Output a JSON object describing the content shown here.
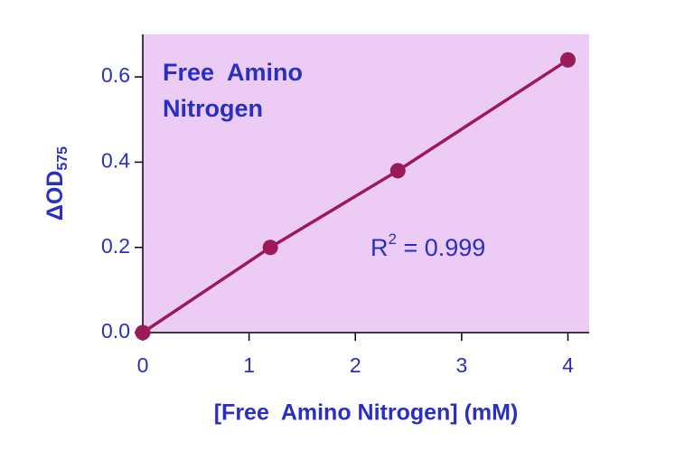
{
  "chart_data": {
    "type": "scatter",
    "title": [
      "Free  Amino",
      "Nitrogen"
    ],
    "x_label": "[Free  Amino Nitrogen] (mM)",
    "y_label": {
      "main": "ΔOD",
      "sub": "575"
    },
    "annotation": {
      "main": "R",
      "sup": "2",
      "rest": " = 0.999"
    },
    "x": [
      0,
      1.2,
      2.4,
      4
    ],
    "series": [
      {
        "color": "#9b1a5a",
        "values": [
          0,
          0.2,
          0.38,
          0.64
        ]
      }
    ],
    "xlim": [
      0,
      4.2
    ],
    "xticks": [
      0,
      1,
      2,
      3,
      4
    ],
    "ylim": [
      0,
      0.7
    ],
    "yticks": [
      {
        "value": 0,
        "label": "0.0"
      },
      {
        "value": 0.2,
        "label": "0.2"
      },
      {
        "value": 0.4,
        "label": "0.4"
      },
      {
        "value": 0.6,
        "label": "0.6"
      }
    ],
    "background": "#ecccf5",
    "text_color": "#2a2fc4",
    "connect_points": true
  }
}
